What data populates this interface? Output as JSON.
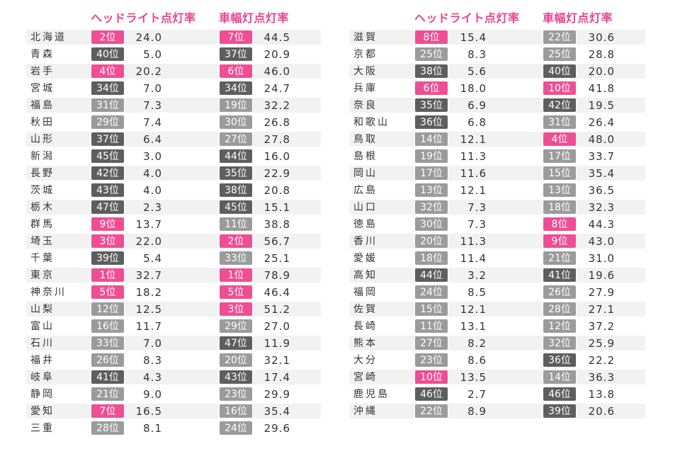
{
  "chart_data": {
    "type": "table",
    "columns": [
      "",
      "ヘッドライト点灯率",
      "車幅灯点灯率"
    ],
    "rank_suffix": "位",
    "colors": {
      "top10": "#ee4e93",
      "middle": "#9b9b9b",
      "bottom": "#5e5e5e"
    },
    "rows": [
      {
        "pref": "北海道",
        "headlight_rank": 2,
        "headlight": "24.0",
        "width_rank": 7,
        "width": "44.5"
      },
      {
        "pref": "青森",
        "headlight_rank": 40,
        "headlight": "5.0",
        "width_rank": 37,
        "width": "20.9"
      },
      {
        "pref": "岩手",
        "headlight_rank": 4,
        "headlight": "20.2",
        "width_rank": 6,
        "width": "46.0"
      },
      {
        "pref": "宮城",
        "headlight_rank": 34,
        "headlight": "7.0",
        "width_rank": 34,
        "width": "24.7"
      },
      {
        "pref": "福島",
        "headlight_rank": 31,
        "headlight": "7.3",
        "width_rank": 19,
        "width": "32.2"
      },
      {
        "pref": "秋田",
        "headlight_rank": 29,
        "headlight": "7.4",
        "width_rank": 30,
        "width": "26.8"
      },
      {
        "pref": "山形",
        "headlight_rank": 37,
        "headlight": "6.4",
        "width_rank": 27,
        "width": "27.8"
      },
      {
        "pref": "新潟",
        "headlight_rank": 45,
        "headlight": "3.0",
        "width_rank": 44,
        "width": "16.0"
      },
      {
        "pref": "長野",
        "headlight_rank": 42,
        "headlight": "4.0",
        "width_rank": 35,
        "width": "22.9"
      },
      {
        "pref": "茨城",
        "headlight_rank": 43,
        "headlight": "4.0",
        "width_rank": 38,
        "width": "20.8"
      },
      {
        "pref": "栃木",
        "headlight_rank": 47,
        "headlight": "2.3",
        "width_rank": 45,
        "width": "15.1"
      },
      {
        "pref": "群馬",
        "headlight_rank": 9,
        "headlight": "13.7",
        "width_rank": 11,
        "width": "38.8"
      },
      {
        "pref": "埼玉",
        "headlight_rank": 3,
        "headlight": "22.0",
        "width_rank": 2,
        "width": "56.7"
      },
      {
        "pref": "千葉",
        "headlight_rank": 39,
        "headlight": "5.4",
        "width_rank": 33,
        "width": "25.1"
      },
      {
        "pref": "東京",
        "headlight_rank": 1,
        "headlight": "32.7",
        "width_rank": 1,
        "width": "78.9"
      },
      {
        "pref": "神奈川",
        "headlight_rank": 5,
        "headlight": "18.2",
        "width_rank": 5,
        "width": "46.4"
      },
      {
        "pref": "山梨",
        "headlight_rank": 12,
        "headlight": "12.5",
        "width_rank": 3,
        "width": "51.2"
      },
      {
        "pref": "富山",
        "headlight_rank": 16,
        "headlight": "11.7",
        "width_rank": 29,
        "width": "27.0"
      },
      {
        "pref": "石川",
        "headlight_rank": 33,
        "headlight": "7.0",
        "width_rank": 47,
        "width": "11.9"
      },
      {
        "pref": "福井",
        "headlight_rank": 26,
        "headlight": "8.3",
        "width_rank": 20,
        "width": "32.1"
      },
      {
        "pref": "岐阜",
        "headlight_rank": 41,
        "headlight": "4.3",
        "width_rank": 43,
        "width": "17.4"
      },
      {
        "pref": "静岡",
        "headlight_rank": 21,
        "headlight": "9.0",
        "width_rank": 23,
        "width": "29.9"
      },
      {
        "pref": "愛知",
        "headlight_rank": 7,
        "headlight": "16.5",
        "width_rank": 16,
        "width": "35.4"
      },
      {
        "pref": "三重",
        "headlight_rank": 28,
        "headlight": "8.1",
        "width_rank": 24,
        "width": "29.6"
      },
      {
        "pref": "滋賀",
        "headlight_rank": 8,
        "headlight": "15.4",
        "width_rank": 22,
        "width": "30.6"
      },
      {
        "pref": "京都",
        "headlight_rank": 25,
        "headlight": "8.3",
        "width_rank": 25,
        "width": "28.8"
      },
      {
        "pref": "大阪",
        "headlight_rank": 38,
        "headlight": "5.6",
        "width_rank": 40,
        "width": "20.0"
      },
      {
        "pref": "兵庫",
        "headlight_rank": 6,
        "headlight": "18.0",
        "width_rank": 10,
        "width": "41.8"
      },
      {
        "pref": "奈良",
        "headlight_rank": 35,
        "headlight": "6.9",
        "width_rank": 42,
        "width": "19.5"
      },
      {
        "pref": "和歌山",
        "headlight_rank": 36,
        "headlight": "6.8",
        "width_rank": 31,
        "width": "26.4"
      },
      {
        "pref": "鳥取",
        "headlight_rank": 14,
        "headlight": "12.1",
        "width_rank": 4,
        "width": "48.0"
      },
      {
        "pref": "島根",
        "headlight_rank": 19,
        "headlight": "11.3",
        "width_rank": 17,
        "width": "33.7"
      },
      {
        "pref": "岡山",
        "headlight_rank": 17,
        "headlight": "11.6",
        "width_rank": 15,
        "width": "35.4"
      },
      {
        "pref": "広島",
        "headlight_rank": 13,
        "headlight": "12.1",
        "width_rank": 13,
        "width": "36.5"
      },
      {
        "pref": "山口",
        "headlight_rank": 32,
        "headlight": "7.3",
        "width_rank": 18,
        "width": "32.3"
      },
      {
        "pref": "徳島",
        "headlight_rank": 30,
        "headlight": "7.3",
        "width_rank": 8,
        "width": "44.3"
      },
      {
        "pref": "香川",
        "headlight_rank": 20,
        "headlight": "11.3",
        "width_rank": 9,
        "width": "43.0"
      },
      {
        "pref": "愛媛",
        "headlight_rank": 18,
        "headlight": "11.4",
        "width_rank": 21,
        "width": "31.0"
      },
      {
        "pref": "高知",
        "headlight_rank": 44,
        "headlight": "3.2",
        "width_rank": 41,
        "width": "19.6"
      },
      {
        "pref": "福岡",
        "headlight_rank": 24,
        "headlight": "8.5",
        "width_rank": 26,
        "width": "27.9"
      },
      {
        "pref": "佐賀",
        "headlight_rank": 15,
        "headlight": "12.1",
        "width_rank": 28,
        "width": "27.1"
      },
      {
        "pref": "長崎",
        "headlight_rank": 11,
        "headlight": "13.1",
        "width_rank": 12,
        "width": "37.2"
      },
      {
        "pref": "熊本",
        "headlight_rank": 27,
        "headlight": "8.2",
        "width_rank": 32,
        "width": "25.9"
      },
      {
        "pref": "大分",
        "headlight_rank": 23,
        "headlight": "8.6",
        "width_rank": 36,
        "width": "22.2"
      },
      {
        "pref": "宮崎",
        "headlight_rank": 10,
        "headlight": "13.5",
        "width_rank": 14,
        "width": "36.3"
      },
      {
        "pref": "鹿児島",
        "headlight_rank": 46,
        "headlight": "2.7",
        "width_rank": 46,
        "width": "13.8"
      },
      {
        "pref": "沖縄",
        "headlight_rank": 22,
        "headlight": "8.9",
        "width_rank": 39,
        "width": "20.6"
      }
    ]
  }
}
